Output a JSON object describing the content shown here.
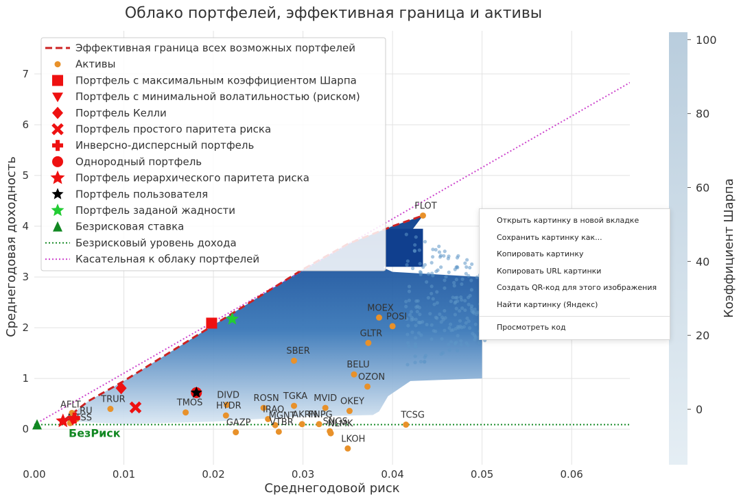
{
  "chart_data": {
    "type": "scatter",
    "title": "Облако портфелей, эффективная граница и активы",
    "xlabel": "Среднегодовой риск",
    "ylabel": "Среднегодовая доходность",
    "xlim": [
      0.0,
      0.0665
    ],
    "ylim": [
      -0.7,
      7.85
    ],
    "x_ticks": [
      "0.00",
      "0.01",
      "0.02",
      "0.03",
      "0.04",
      "0.05",
      "0.06"
    ],
    "y_ticks": [
      "0",
      "1",
      "2",
      "3",
      "4",
      "5",
      "6",
      "7"
    ],
    "grid": true,
    "legend_position": "top-left",
    "colorbar": {
      "label": "Коэффициент Шарпа",
      "range": [
        -15,
        102
      ],
      "ticks": [
        "0",
        "20",
        "40",
        "60",
        "80",
        "100"
      ],
      "colors": [
        "#e5eef4",
        "#b9cddd"
      ]
    },
    "series_colors": {
      "frontier": "#cc2222",
      "assets": "#e8912a",
      "markers": "#ee1111",
      "user": "#000000",
      "greedy": "#22cc33",
      "riskfree": "#118822",
      "tangent": "#cc44cc",
      "cloud_dark": "#0a3d8c",
      "cloud_light": "#b8d4ea"
    },
    "legend": [
      {
        "label": "Эффективная граница всех возможных портфелей",
        "marker": "dash-line"
      },
      {
        "label": "Активы",
        "marker": "dot"
      },
      {
        "label": "Портфель с максимальным коэффициентом Шарпа",
        "marker": "square"
      },
      {
        "label": "Портфель с минимальной волатильностью (риском)",
        "marker": "triangle-down"
      },
      {
        "label": "Портфель Келли",
        "marker": "diamond"
      },
      {
        "label": "Портфель простого паритета риска",
        "marker": "x"
      },
      {
        "label": "Инверсно-дисперсный портфель",
        "marker": "plus"
      },
      {
        "label": "Однородный портфель",
        "marker": "circle"
      },
      {
        "label": "Портфель иерархического паритета риска",
        "marker": "star"
      },
      {
        "label": "Портфель пользователя",
        "marker": "star-black"
      },
      {
        "label": "Портфель заданой жадности",
        "marker": "star-green"
      },
      {
        "label": "Безрисковая ставка",
        "marker": "triangle-up"
      },
      {
        "label": "Безрисковый уровень дохода",
        "marker": "dotted-green"
      },
      {
        "label": "Касательная к облаку портфелей",
        "marker": "dotted-magenta"
      }
    ],
    "assets": [
      {
        "name": "FLOT",
        "x": 0.0434,
        "y": 4.21
      },
      {
        "name": "MOEX",
        "x": 0.0385,
        "y": 2.2
      },
      {
        "name": "POSI",
        "x": 0.04,
        "y": 2.03
      },
      {
        "name": "GLTR",
        "x": 0.0373,
        "y": 1.7
      },
      {
        "name": "SBER",
        "x": 0.029,
        "y": 1.35
      },
      {
        "name": "BELU",
        "x": 0.0357,
        "y": 1.08
      },
      {
        "name": "OZON",
        "x": 0.0372,
        "y": 0.84
      },
      {
        "name": "TRUR",
        "x": 0.0085,
        "y": 0.4
      },
      {
        "name": "TMOS",
        "x": 0.0169,
        "y": 0.33
      },
      {
        "name": "DIVD",
        "x": 0.0215,
        "y": 0.48
      },
      {
        "name": "HYDR",
        "x": 0.0214,
        "y": 0.27
      },
      {
        "name": "ROSN",
        "x": 0.0256,
        "y": 0.42
      },
      {
        "name": "IRAO",
        "x": 0.0261,
        "y": 0.2
      },
      {
        "name": "TGKA",
        "x": 0.029,
        "y": 0.46
      },
      {
        "name": "MVID",
        "x": 0.0325,
        "y": 0.42
      },
      {
        "name": "OKEY",
        "x": 0.0352,
        "y": 0.36
      },
      {
        "name": "GAZP",
        "x": 0.0225,
        "y": -0.06
      },
      {
        "name": "MGNT",
        "x": 0.0269,
        "y": 0.08
      },
      {
        "name": "VTBR",
        "x": 0.0273,
        "y": -0.05
      },
      {
        "name": "AKRN",
        "x": 0.0299,
        "y": 0.1
      },
      {
        "name": "FNPG",
        "x": 0.0318,
        "y": 0.1
      },
      {
        "name": "SNGS",
        "x": 0.033,
        "y": -0.04
      },
      {
        "name": "NLMK",
        "x": 0.0331,
        "y": -0.08
      },
      {
        "name": "TCSG",
        "x": 0.0415,
        "y": 0.09
      },
      {
        "name": "LKOH",
        "x": 0.035,
        "y": -0.38
      },
      {
        "name": "AFLT",
        "x": 0.0042,
        "y": 0.32
      },
      {
        "name": "RU",
        "x": 0.0047,
        "y": 0.2
      },
      {
        "name": "MTSS",
        "x": 0.004,
        "y": 0.12
      }
    ],
    "asset_label_offsets_note": "",
    "special_portfolios": [
      {
        "kind": "max-sharpe",
        "x": 0.0198,
        "y": 2.09
      },
      {
        "kind": "min-vol",
        "x": 0.0043,
        "y": 0.18
      },
      {
        "kind": "kelly",
        "x": 0.0097,
        "y": 0.81
      },
      {
        "kind": "risk-parity",
        "x": 0.0113,
        "y": 0.43
      },
      {
        "kind": "inverse-variance",
        "x": 0.0045,
        "y": 0.22
      },
      {
        "kind": "uniform",
        "x": 0.0181,
        "y": 0.72
      },
      {
        "kind": "hrp",
        "x": 0.0032,
        "y": 0.16
      },
      {
        "kind": "user",
        "x": 0.0181,
        "y": 0.72
      },
      {
        "kind": "greedy",
        "x": 0.0221,
        "y": 2.17
      }
    ],
    "risk_free": {
      "x": 0.0,
      "y": 0.09,
      "label": "БезРиск"
    },
    "tangent_line": {
      "x0": 0.0,
      "y0": 0.09,
      "x1": 0.0665,
      "y1": 6.83
    },
    "frontier": [
      [
        0.0032,
        0.16
      ],
      [
        0.006,
        0.55
      ],
      [
        0.01,
        0.95
      ],
      [
        0.015,
        1.5
      ],
      [
        0.02,
        2.05
      ],
      [
        0.025,
        2.6
      ],
      [
        0.03,
        3.15
      ],
      [
        0.035,
        3.65
      ],
      [
        0.04,
        4.0
      ],
      [
        0.0434,
        4.21
      ]
    ]
  },
  "context_menu": {
    "items": [
      "Открыть картинку в новой вкладке",
      "Сохранить картинку как...",
      "Копировать картинку",
      "Копировать URL картинки",
      "Создать QR-код для этого изображения",
      "Найти картинку (Яндекс)"
    ],
    "inspect": "Просмотреть код"
  }
}
